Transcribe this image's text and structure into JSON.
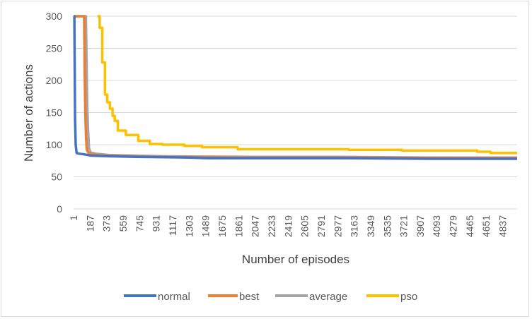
{
  "chart_data": {
    "type": "line",
    "title": "",
    "xlabel": "Number of episodes",
    "ylabel": "Number of actions",
    "xlim": [
      1,
      5000
    ],
    "ylim": [
      0,
      300
    ],
    "yticks": [
      0,
      50,
      100,
      150,
      200,
      250,
      300
    ],
    "xticks": [
      "1",
      "187",
      "373",
      "559",
      "745",
      "931",
      "1117",
      "1303",
      "1489",
      "1675",
      "1861",
      "2047",
      "2233",
      "2419",
      "2605",
      "2791",
      "2977",
      "3163",
      "3349",
      "3535",
      "3721",
      "3907",
      "4093",
      "4279",
      "4465",
      "4651",
      "4837"
    ],
    "grid": "horizontal",
    "legend": "bottom",
    "series": [
      {
        "name": "normal",
        "color": "#4472C4",
        "points": [
          [
            1,
            300
          ],
          [
            10,
            300
          ],
          [
            18,
            140
          ],
          [
            25,
            100
          ],
          [
            35,
            87
          ],
          [
            60,
            86
          ],
          [
            120,
            85
          ],
          [
            200,
            83
          ],
          [
            400,
            82
          ],
          [
            700,
            81
          ],
          [
            1300,
            80
          ],
          [
            1500,
            79
          ],
          [
            2500,
            79
          ],
          [
            3000,
            79
          ],
          [
            4000,
            78
          ],
          [
            5000,
            78
          ]
        ]
      },
      {
        "name": "best",
        "color": "#ED7D31",
        "points": [
          [
            1,
            300
          ],
          [
            120,
            300
          ],
          [
            128,
            200
          ],
          [
            135,
            140
          ],
          [
            142,
            110
          ],
          [
            150,
            92
          ],
          [
            170,
            87
          ],
          [
            250,
            84
          ],
          [
            350,
            83
          ],
          [
            600,
            82
          ],
          [
            1000,
            81
          ],
          [
            2000,
            80
          ],
          [
            3000,
            80
          ],
          [
            5000,
            79
          ]
        ]
      },
      {
        "name": "average",
        "color": "#A5A5A5",
        "points": [
          [
            1,
            300
          ],
          [
            140,
            300
          ],
          [
            148,
            230
          ],
          [
            155,
            160
          ],
          [
            165,
            120
          ],
          [
            175,
            95
          ],
          [
            190,
            88
          ],
          [
            250,
            86
          ],
          [
            400,
            84
          ],
          [
            700,
            83
          ],
          [
            1000,
            82
          ],
          [
            2000,
            81
          ],
          [
            3000,
            81
          ],
          [
            4000,
            80
          ],
          [
            5000,
            80
          ]
        ]
      },
      {
        "name": "pso",
        "color": "#FFC000",
        "points": [
          [
            270,
            300
          ],
          [
            295,
            300
          ],
          [
            295,
            282
          ],
          [
            325,
            282
          ],
          [
            325,
            228
          ],
          [
            355,
            228
          ],
          [
            355,
            178
          ],
          [
            380,
            178
          ],
          [
            380,
            166
          ],
          [
            410,
            166
          ],
          [
            410,
            156
          ],
          [
            440,
            156
          ],
          [
            440,
            145
          ],
          [
            465,
            145
          ],
          [
            465,
            137
          ],
          [
            500,
            137
          ],
          [
            500,
            122
          ],
          [
            590,
            122
          ],
          [
            590,
            115
          ],
          [
            730,
            115
          ],
          [
            730,
            106
          ],
          [
            860,
            106
          ],
          [
            860,
            101
          ],
          [
            1000,
            101
          ],
          [
            1000,
            100
          ],
          [
            1250,
            100
          ],
          [
            1250,
            98
          ],
          [
            1450,
            98
          ],
          [
            1450,
            96
          ],
          [
            1850,
            96
          ],
          [
            1850,
            93
          ],
          [
            3100,
            93
          ],
          [
            3100,
            92
          ],
          [
            3700,
            92
          ],
          [
            3700,
            91
          ],
          [
            4550,
            91
          ],
          [
            4550,
            89
          ],
          [
            4700,
            89
          ],
          [
            4700,
            87
          ],
          [
            5000,
            87
          ]
        ]
      }
    ]
  }
}
